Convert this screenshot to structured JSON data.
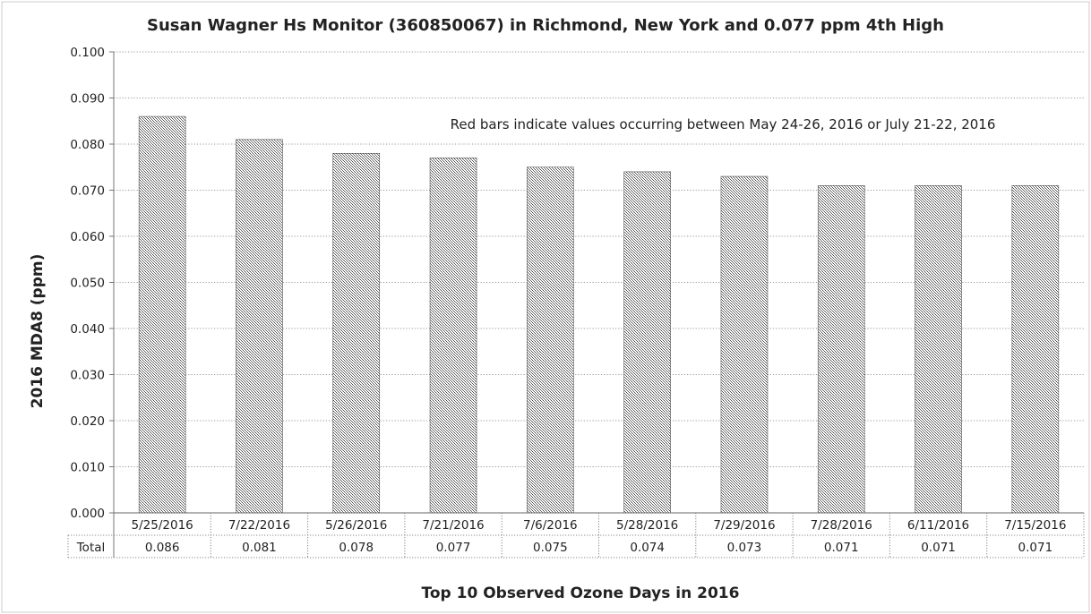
{
  "chart_data": {
    "type": "bar",
    "title": "Susan Wagner Hs Monitor (360850067) in Richmond, New York and 0.077 ppm 4th High",
    "annotation": "Red bars indicate values occurring between May 24-26, 2016 or July 21-22, 2016",
    "xlabel": "Top 10 Observed Ozone Days in 2016",
    "ylabel": "2016 MDA8 (ppm)",
    "ylim": [
      0,
      0.1
    ],
    "y_ticks": [
      "0.000",
      "0.010",
      "0.020",
      "0.030",
      "0.040",
      "0.050",
      "0.060",
      "0.070",
      "0.080",
      "0.090",
      "0.100"
    ],
    "grid": true,
    "categories": [
      "5/25/2016",
      "7/22/2016",
      "5/26/2016",
      "7/21/2016",
      "7/6/2016",
      "5/28/2016",
      "7/29/2016",
      "7/28/2016",
      "6/11/2016",
      "7/15/2016"
    ],
    "series": [
      {
        "name": "Total",
        "values": [
          0.086,
          0.081,
          0.078,
          0.077,
          0.075,
          0.074,
          0.073,
          0.071,
          0.071,
          0.071
        ],
        "labels": [
          "0.086",
          "0.081",
          "0.078",
          "0.077",
          "0.075",
          "0.074",
          "0.073",
          "0.071",
          "0.071",
          "0.071"
        ]
      }
    ],
    "data_table": true,
    "bar_fill": "#8a8a8a"
  }
}
